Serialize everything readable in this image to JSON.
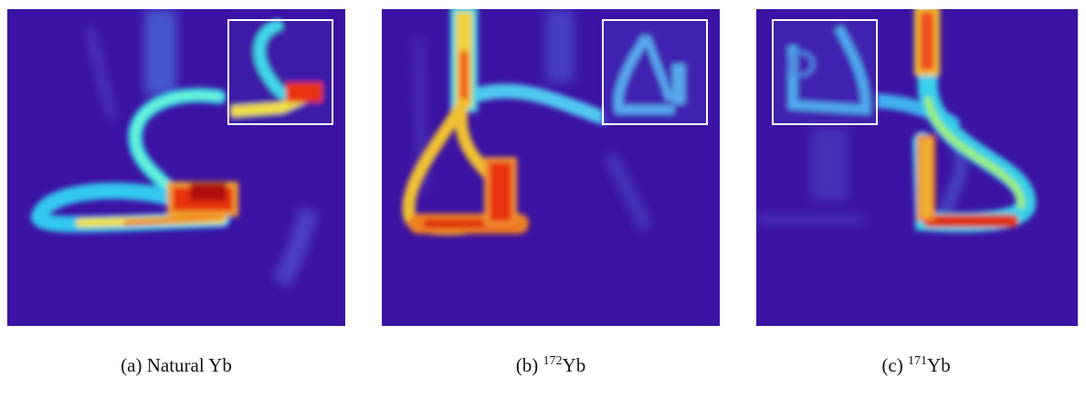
{
  "captions": [
    {
      "label": "(a)",
      "text": "Natural Yb"
    },
    {
      "label": "(b)",
      "mass": "172",
      "text": "Yb"
    },
    {
      "label": "(c)",
      "mass": "171",
      "text": "Yb"
    }
  ]
}
